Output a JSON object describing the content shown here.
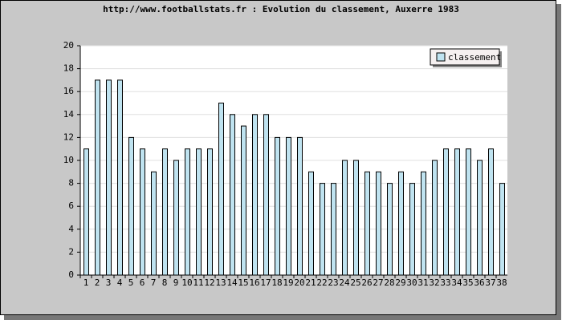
{
  "chart_data": {
    "type": "bar",
    "title": "http://www.footballstats.fr : Evolution du classement, Auxerre 1983",
    "categories": [
      "1",
      "2",
      "3",
      "4",
      "5",
      "6",
      "7",
      "8",
      "9",
      "10",
      "11",
      "12",
      "13",
      "14",
      "15",
      "16",
      "17",
      "18",
      "19",
      "20",
      "21",
      "22",
      "23",
      "24",
      "25",
      "26",
      "27",
      "28",
      "29",
      "30",
      "31",
      "32",
      "33",
      "34",
      "35",
      "36",
      "37",
      "38"
    ],
    "series": [
      {
        "name": "classement",
        "color": "#bfe3f0",
        "values": [
          11,
          17,
          17,
          17,
          12,
          11,
          9,
          11,
          10,
          11,
          11,
          11,
          15,
          14,
          13,
          14,
          14,
          12,
          12,
          12,
          9,
          8,
          8,
          10,
          10,
          9,
          9,
          8,
          9,
          8,
          9,
          10,
          11,
          11,
          11,
          10,
          11,
          8
        ]
      }
    ],
    "ylim": [
      0,
      20
    ],
    "yticks": [
      0,
      2,
      4,
      6,
      8,
      10,
      12,
      14,
      16,
      18,
      20
    ],
    "grid": true,
    "legend": "top-right"
  }
}
